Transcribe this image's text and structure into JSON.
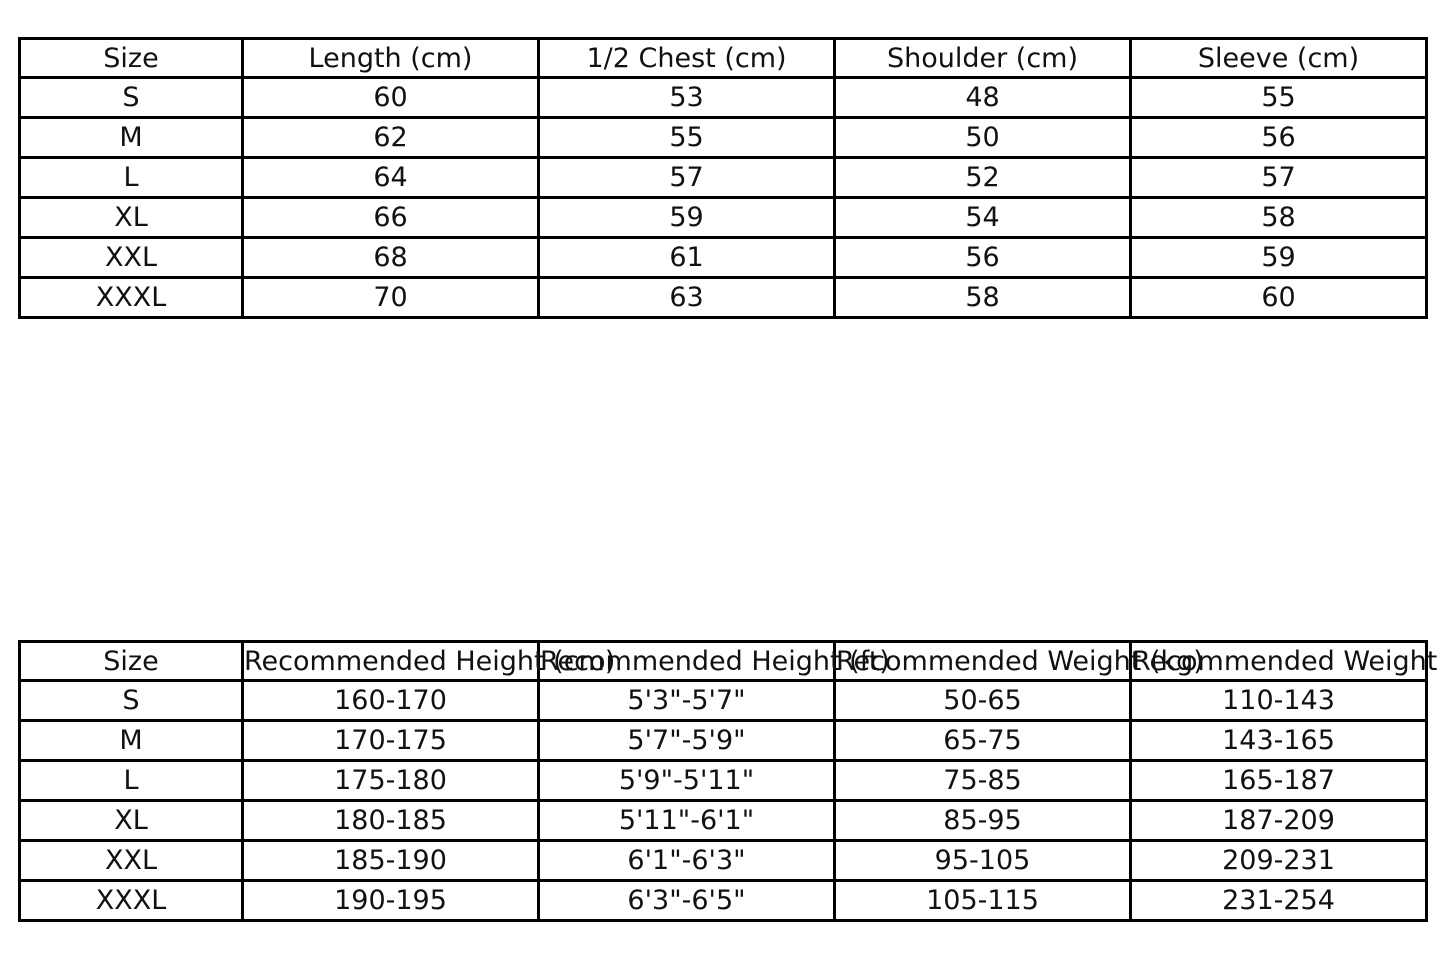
{
  "colors": {
    "page-bg": "#ffffff",
    "table-border": "#000000",
    "table-text": "#111111"
  },
  "chart_data": [
    {
      "type": "table",
      "name": "garment-measurements",
      "columns": [
        "Size",
        "Length (cm)",
        "1/2 Chest (cm)",
        "Shoulder (cm)",
        "Sleeve (cm)"
      ],
      "rows": [
        [
          "S",
          "60",
          "53",
          "48",
          "55"
        ],
        [
          "M",
          "62",
          "55",
          "50",
          "56"
        ],
        [
          "L",
          "64",
          "57",
          "52",
          "57"
        ],
        [
          "XL",
          "66",
          "59",
          "54",
          "58"
        ],
        [
          "XXL",
          "68",
          "61",
          "56",
          "59"
        ],
        [
          "XXXL",
          "70",
          "63",
          "58",
          "60"
        ]
      ],
      "layout_hints": {
        "header_row": true,
        "grid": true,
        "note": "header text fits inside cells"
      }
    },
    {
      "type": "table",
      "name": "recommended-fit",
      "columns": [
        "Size",
        "Recommended Height (cm)",
        "Recommended Height (ft)",
        "Recommended Weight (kg)",
        "Recommended Weight (lbs)"
      ],
      "rows": [
        [
          "S",
          "160-170",
          "5'3\"-5'7\"",
          "50-65",
          "110-143"
        ],
        [
          "M",
          "170-175",
          "5'7\"-5'9\"",
          "65-75",
          "143-165"
        ],
        [
          "L",
          "175-180",
          "5'9\"-5'11\"",
          "75-85",
          "165-187"
        ],
        [
          "XL",
          "180-185",
          "5'11\"-6'1\"",
          "85-95",
          "187-209"
        ],
        [
          "XXL",
          "185-190",
          "6'1\"-6'3\"",
          "95-105",
          "209-231"
        ],
        [
          "XXXL",
          "190-195",
          "6'3\"-6'5\"",
          "105-115",
          "231-254"
        ]
      ],
      "layout_hints": {
        "header_row": true,
        "grid": true,
        "note": "header texts wider than columns, centered, overflow and overlap neighbors; last header clipped at right image edge"
      }
    }
  ]
}
